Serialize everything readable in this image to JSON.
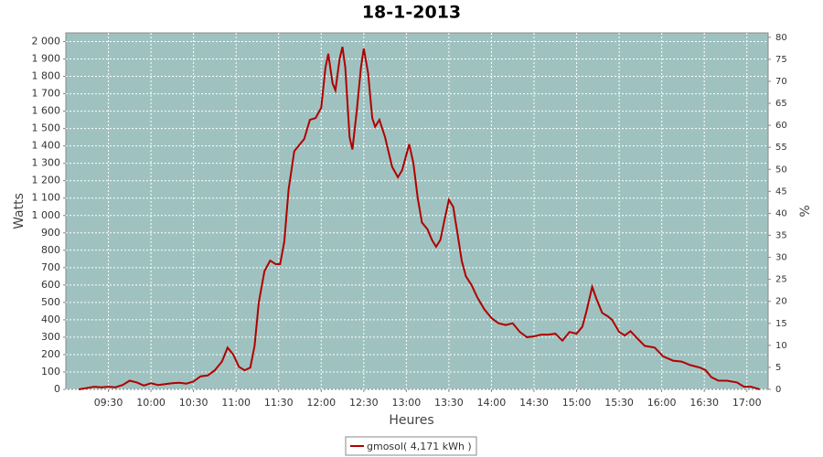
{
  "chart_data": {
    "type": "line",
    "title": "18-1-2013",
    "x_label": "Heures",
    "y_label": "Watts",
    "y2_label": "%",
    "xlim": [
      "09:00",
      "17:15"
    ],
    "xticks": [
      "09:30",
      "10:00",
      "10:30",
      "11:00",
      "11:30",
      "12:00",
      "12:30",
      "13:00",
      "13:30",
      "14:00",
      "14:30",
      "15:00",
      "15:30",
      "16:00",
      "16:30",
      "17:00"
    ],
    "ylim": [
      0,
      2050
    ],
    "yticks": [
      0,
      100,
      200,
      300,
      400,
      500,
      600,
      700,
      800,
      900,
      {
        "value": 1000,
        "label": "1 000"
      },
      {
        "value": 1100,
        "label": "1 100"
      },
      {
        "value": 1200,
        "label": "1 200"
      },
      {
        "value": 1300,
        "label": "1 300"
      },
      {
        "value": 1400,
        "label": "1 400"
      },
      {
        "value": 1500,
        "label": "1 500"
      },
      {
        "value": 1600,
        "label": "1 600"
      },
      {
        "value": 1700,
        "label": "1 700"
      },
      {
        "value": 1800,
        "label": "1 800"
      },
      {
        "value": 1900,
        "label": "1 900"
      },
      {
        "value": 2000,
        "label": "2 000"
      }
    ],
    "y2lim": [
      0,
      81
    ],
    "y2ticks": [
      0,
      5,
      10,
      15,
      20,
      25,
      30,
      35,
      40,
      45,
      50,
      55,
      60,
      65,
      70,
      75,
      80
    ],
    "grid": true,
    "background": "#9fc2c0",
    "x": [
      "09:09",
      "09:15",
      "09:20",
      "09:25",
      "09:30",
      "09:35",
      "09:40",
      "09:45",
      "09:50",
      "09:55",
      "10:00",
      "10:05",
      "10:10",
      "10:15",
      "10:20",
      "10:25",
      "10:30",
      "10:35",
      "10:40",
      "10:45",
      "10:50",
      "10:54",
      "10:58",
      "11:02",
      "11:06",
      "11:10",
      "11:13",
      "11:16",
      "11:20",
      "11:24",
      "11:28",
      "11:31",
      "11:34",
      "11:37",
      "11:41",
      "11:45",
      "11:48",
      "11:52",
      "11:56",
      "12:00",
      "12:03",
      "12:05",
      "12:08",
      "12:10",
      "12:13",
      "12:15",
      "12:17",
      "12:20",
      "12:22",
      "12:25",
      "12:28",
      "12:30",
      "12:33",
      "12:36",
      "12:38",
      "12:41",
      "12:45",
      "12:50",
      "12:54",
      "12:57",
      "13:00",
      "13:02",
      "13:05",
      "13:08",
      "13:11",
      "13:15",
      "13:18",
      "13:21",
      "13:24",
      "13:27",
      "13:30",
      "13:33",
      "13:36",
      "13:39",
      "13:42",
      "13:46",
      "13:50",
      "13:55",
      "14:00",
      "14:05",
      "14:10",
      "14:15",
      "14:20",
      "14:25",
      "14:30",
      "14:35",
      "14:40",
      "14:45",
      "14:50",
      "14:55",
      "15:00",
      "15:04",
      "15:07",
      "15:11",
      "15:14",
      "15:18",
      "15:22",
      "15:25",
      "15:30",
      "15:34",
      "15:38",
      "15:42",
      "15:48",
      "15:55",
      "16:01",
      "16:08",
      "16:14",
      "16:20",
      "16:27",
      "16:31",
      "16:35",
      "16:40",
      "16:46",
      "16:53",
      "16:58",
      "17:03",
      "17:09"
    ],
    "series": [
      {
        "name": "gmosol( 4,171 kWh )",
        "color": "#b00000",
        "values": [
          0,
          8,
          15,
          12,
          15,
          12,
          25,
          50,
          40,
          22,
          35,
          25,
          30,
          35,
          38,
          33,
          45,
          75,
          80,
          110,
          160,
          240,
          200,
          130,
          110,
          125,
          250,
          500,
          680,
          740,
          720,
          720,
          850,
          1150,
          1370,
          1410,
          1440,
          1550,
          1560,
          1620,
          1850,
          1930,
          1760,
          1720,
          1900,
          1970,
          1850,
          1450,
          1380,
          1600,
          1850,
          1960,
          1820,
          1560,
          1510,
          1550,
          1450,
          1280,
          1220,
          1260,
          1350,
          1410,
          1300,
          1100,
          960,
          920,
          860,
          820,
          860,
          980,
          1090,
          1050,
          900,
          740,
          650,
          600,
          530,
          460,
          410,
          380,
          370,
          380,
          330,
          300,
          305,
          315,
          315,
          320,
          280,
          330,
          320,
          360,
          450,
          590,
          520,
          440,
          420,
          400,
          330,
          310,
          335,
          300,
          250,
          240,
          190,
          165,
          160,
          140,
          125,
          110,
          70,
          50,
          50,
          40,
          15,
          15,
          0
        ]
      }
    ]
  }
}
